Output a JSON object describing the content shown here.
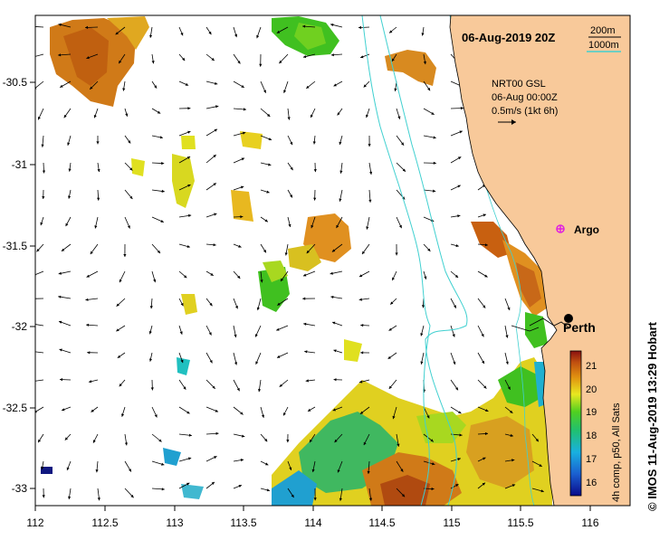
{
  "map": {
    "date_title": "06-Aug-2019 20Z",
    "depth_legend": {
      "items": [
        {
          "label": "200m",
          "color": "#000000"
        },
        {
          "label": "1000m",
          "color": "#40d0d0"
        }
      ]
    },
    "current_legend": {
      "line1": "NRT00 GSL",
      "line2": "06-Aug 00:00Z",
      "line3": "0.5m/s (1kt 6h)"
    },
    "places": [
      {
        "name": "Argo",
        "lon": 115.8,
        "lat": -31.45,
        "marker": "magenta-star"
      },
      {
        "name": "Perth",
        "lon": 115.86,
        "lat": -31.95,
        "marker": "black-dot"
      }
    ],
    "x_axis": {
      "min": 112,
      "max": 116.3,
      "ticks": [
        "112",
        "112.5",
        "113",
        "113.5",
        "114",
        "114.5",
        "115",
        "115.5",
        "116"
      ]
    },
    "y_axis": {
      "min": -33.1,
      "max": -30.05,
      "ticks": [
        "-30.5",
        "-31",
        "-31.5",
        "-32",
        "-32.5",
        "-33"
      ]
    },
    "colors": {
      "land": "#f8c99a",
      "ocean": "#ffffff",
      "isobath_200": "#000000",
      "isobath_1000": "#40d0d0"
    },
    "credit": "© IMOS 11-Aug-2019 13:29 Hobart"
  },
  "colorbar": {
    "label": "4h comp, p50, All Sats",
    "min": 15.5,
    "max": 21.8,
    "ticks": [
      "21",
      "20",
      "19",
      "18",
      "17",
      "16"
    ]
  }
}
